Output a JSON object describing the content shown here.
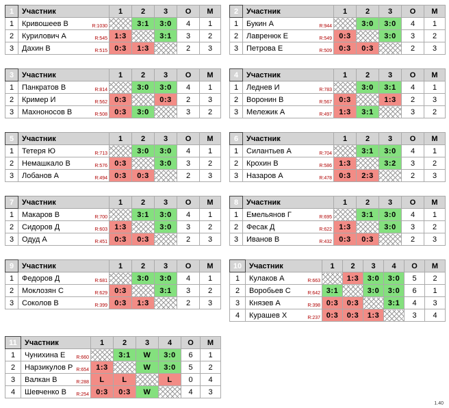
{
  "header": {
    "participant": "Участник",
    "points": "О",
    "place": "М"
  },
  "rating_prefix": "R:",
  "version": "1.40",
  "colors": {
    "win": "#84e07e",
    "loss": "#f28c86",
    "header": "#d4d4d4",
    "group_badge": "#000000"
  },
  "groups": [
    {
      "num": "1",
      "cols": [
        "1",
        "2",
        "3"
      ],
      "rows": [
        {
          "seat": "1",
          "name": "Кривошеев В",
          "rating": "1030",
          "cells": [
            {
              "t": "self",
              "v": ""
            },
            {
              "t": "win",
              "v": "3:1"
            },
            {
              "t": "win",
              "v": "3:0"
            }
          ],
          "points": "4",
          "place": "1"
        },
        {
          "seat": "2",
          "name": "Курилович А",
          "rating": "545",
          "cells": [
            {
              "t": "loss",
              "v": "1:3"
            },
            {
              "t": "self",
              "v": ""
            },
            {
              "t": "win",
              "v": "3:1"
            }
          ],
          "points": "3",
          "place": "2"
        },
        {
          "seat": "3",
          "name": "Дахин В",
          "rating": "515",
          "cells": [
            {
              "t": "loss",
              "v": "0:3"
            },
            {
              "t": "loss",
              "v": "1:3"
            },
            {
              "t": "self",
              "v": ""
            }
          ],
          "points": "2",
          "place": "3"
        }
      ]
    },
    {
      "num": "2",
      "cols": [
        "1",
        "2",
        "3"
      ],
      "rows": [
        {
          "seat": "1",
          "name": "Букин А",
          "rating": "944",
          "cells": [
            {
              "t": "self",
              "v": ""
            },
            {
              "t": "win",
              "v": "3:0"
            },
            {
              "t": "win",
              "v": "3:0"
            }
          ],
          "points": "4",
          "place": "1"
        },
        {
          "seat": "2",
          "name": "Лавренюк Е",
          "rating": "549",
          "cells": [
            {
              "t": "loss",
              "v": "0:3"
            },
            {
              "t": "self",
              "v": ""
            },
            {
              "t": "win",
              "v": "3:0"
            }
          ],
          "points": "3",
          "place": "2"
        },
        {
          "seat": "3",
          "name": "Петрова Е",
          "rating": "509",
          "cells": [
            {
              "t": "loss",
              "v": "0:3"
            },
            {
              "t": "loss",
              "v": "0:3"
            },
            {
              "t": "self",
              "v": ""
            }
          ],
          "points": "2",
          "place": "3"
        }
      ]
    },
    {
      "num": "3",
      "cols": [
        "1",
        "2",
        "3"
      ],
      "rows": [
        {
          "seat": "1",
          "name": "Панкратов В",
          "rating": "814",
          "cells": [
            {
              "t": "self",
              "v": ""
            },
            {
              "t": "win",
              "v": "3:0"
            },
            {
              "t": "win",
              "v": "3:0"
            }
          ],
          "points": "4",
          "place": "1"
        },
        {
          "seat": "2",
          "name": "Кример И",
          "rating": "562",
          "cells": [
            {
              "t": "loss",
              "v": "0:3"
            },
            {
              "t": "self",
              "v": ""
            },
            {
              "t": "loss",
              "v": "0:3"
            }
          ],
          "points": "2",
          "place": "3"
        },
        {
          "seat": "3",
          "name": "Махноносов В",
          "rating": "508",
          "cells": [
            {
              "t": "loss",
              "v": "0:3"
            },
            {
              "t": "win",
              "v": "3:0"
            },
            {
              "t": "self",
              "v": ""
            }
          ],
          "points": "3",
          "place": "2"
        }
      ]
    },
    {
      "num": "4",
      "cols": [
        "1",
        "2",
        "3"
      ],
      "rows": [
        {
          "seat": "1",
          "name": "Леднев И",
          "rating": "783",
          "cells": [
            {
              "t": "self",
              "v": ""
            },
            {
              "t": "win",
              "v": "3:0"
            },
            {
              "t": "win",
              "v": "3:1"
            }
          ],
          "points": "4",
          "place": "1"
        },
        {
          "seat": "2",
          "name": "Воронин В",
          "rating": "567",
          "cells": [
            {
              "t": "loss",
              "v": "0:3"
            },
            {
              "t": "self",
              "v": ""
            },
            {
              "t": "loss",
              "v": "1:3"
            }
          ],
          "points": "2",
          "place": "3"
        },
        {
          "seat": "3",
          "name": "Мележик А",
          "rating": "497",
          "cells": [
            {
              "t": "loss",
              "v": "1:3"
            },
            {
              "t": "win",
              "v": "3:1"
            },
            {
              "t": "self",
              "v": ""
            }
          ],
          "points": "3",
          "place": "2"
        }
      ]
    },
    {
      "num": "5",
      "cols": [
        "1",
        "2",
        "3"
      ],
      "rows": [
        {
          "seat": "1",
          "name": "Тетеря Ю",
          "rating": "713",
          "cells": [
            {
              "t": "self",
              "v": ""
            },
            {
              "t": "win",
              "v": "3:0"
            },
            {
              "t": "win",
              "v": "3:0"
            }
          ],
          "points": "4",
          "place": "1"
        },
        {
          "seat": "2",
          "name": "Немашкало В",
          "rating": "576",
          "cells": [
            {
              "t": "loss",
              "v": "0:3"
            },
            {
              "t": "self",
              "v": ""
            },
            {
              "t": "win",
              "v": "3:0"
            }
          ],
          "points": "3",
          "place": "2"
        },
        {
          "seat": "3",
          "name": "Лобанов А",
          "rating": "494",
          "cells": [
            {
              "t": "loss",
              "v": "0:3"
            },
            {
              "t": "loss",
              "v": "0:3"
            },
            {
              "t": "self",
              "v": ""
            }
          ],
          "points": "2",
          "place": "3"
        }
      ]
    },
    {
      "num": "6",
      "cols": [
        "1",
        "2",
        "3"
      ],
      "rows": [
        {
          "seat": "1",
          "name": "Силантьев А",
          "rating": "704",
          "cells": [
            {
              "t": "self",
              "v": ""
            },
            {
              "t": "win",
              "v": "3:1"
            },
            {
              "t": "win",
              "v": "3:0"
            }
          ],
          "points": "4",
          "place": "1"
        },
        {
          "seat": "2",
          "name": "Крохин В",
          "rating": "586",
          "cells": [
            {
              "t": "loss",
              "v": "1:3"
            },
            {
              "t": "self",
              "v": ""
            },
            {
              "t": "win",
              "v": "3:2"
            }
          ],
          "points": "3",
          "place": "2"
        },
        {
          "seat": "3",
          "name": "Назаров А",
          "rating": "478",
          "cells": [
            {
              "t": "loss",
              "v": "0:3"
            },
            {
              "t": "loss",
              "v": "2:3"
            },
            {
              "t": "self",
              "v": ""
            }
          ],
          "points": "2",
          "place": "3"
        }
      ]
    },
    {
      "num": "7",
      "cols": [
        "1",
        "2",
        "3"
      ],
      "rows": [
        {
          "seat": "1",
          "name": "Макаров В",
          "rating": "700",
          "cells": [
            {
              "t": "self",
              "v": ""
            },
            {
              "t": "win",
              "v": "3:1"
            },
            {
              "t": "win",
              "v": "3:0"
            }
          ],
          "points": "4",
          "place": "1"
        },
        {
          "seat": "2",
          "name": "Сидоров Д",
          "rating": "603",
          "cells": [
            {
              "t": "loss",
              "v": "1:3"
            },
            {
              "t": "self",
              "v": ""
            },
            {
              "t": "win",
              "v": "3:0"
            }
          ],
          "points": "3",
          "place": "2"
        },
        {
          "seat": "3",
          "name": "Одуд А",
          "rating": "451",
          "cells": [
            {
              "t": "loss",
              "v": "0:3"
            },
            {
              "t": "loss",
              "v": "0:3"
            },
            {
              "t": "self",
              "v": ""
            }
          ],
          "points": "2",
          "place": "3"
        }
      ]
    },
    {
      "num": "8",
      "cols": [
        "1",
        "2",
        "3"
      ],
      "rows": [
        {
          "seat": "1",
          "name": "Емельянов Г",
          "rating": "695",
          "cells": [
            {
              "t": "self",
              "v": ""
            },
            {
              "t": "win",
              "v": "3:1"
            },
            {
              "t": "win",
              "v": "3:0"
            }
          ],
          "points": "4",
          "place": "1"
        },
        {
          "seat": "2",
          "name": "Фесак Д",
          "rating": "622",
          "cells": [
            {
              "t": "loss",
              "v": "1:3"
            },
            {
              "t": "self",
              "v": ""
            },
            {
              "t": "win",
              "v": "3:0"
            }
          ],
          "points": "3",
          "place": "2"
        },
        {
          "seat": "3",
          "name": "Иванов В",
          "rating": "432",
          "cells": [
            {
              "t": "loss",
              "v": "0:3"
            },
            {
              "t": "loss",
              "v": "0:3"
            },
            {
              "t": "self",
              "v": ""
            }
          ],
          "points": "2",
          "place": "3"
        }
      ]
    },
    {
      "num": "9",
      "cols": [
        "1",
        "2",
        "3"
      ],
      "rows": [
        {
          "seat": "1",
          "name": "Федоров Д",
          "rating": "681",
          "cells": [
            {
              "t": "self",
              "v": ""
            },
            {
              "t": "win",
              "v": "3:0"
            },
            {
              "t": "win",
              "v": "3:0"
            }
          ],
          "points": "4",
          "place": "1"
        },
        {
          "seat": "2",
          "name": "Моклозян С",
          "rating": "629",
          "cells": [
            {
              "t": "loss",
              "v": "0:3"
            },
            {
              "t": "self",
              "v": ""
            },
            {
              "t": "win",
              "v": "3:1"
            }
          ],
          "points": "3",
          "place": "2"
        },
        {
          "seat": "3",
          "name": "Соколов В",
          "rating": "399",
          "cells": [
            {
              "t": "loss",
              "v": "0:3"
            },
            {
              "t": "loss",
              "v": "1:3"
            },
            {
              "t": "self",
              "v": ""
            }
          ],
          "points": "2",
          "place": "3"
        }
      ]
    },
    {
      "num": "10",
      "cols": [
        "1",
        "2",
        "3",
        "4"
      ],
      "rows": [
        {
          "seat": "1",
          "name": "Кулаков А",
          "rating": "663",
          "cells": [
            {
              "t": "self",
              "v": ""
            },
            {
              "t": "loss",
              "v": "1:3"
            },
            {
              "t": "win",
              "v": "3:0"
            },
            {
              "t": "win",
              "v": "3:0"
            }
          ],
          "points": "5",
          "place": "2"
        },
        {
          "seat": "2",
          "name": "Воробьев С",
          "rating": "642",
          "cells": [
            {
              "t": "win",
              "v": "3:1"
            },
            {
              "t": "self",
              "v": ""
            },
            {
              "t": "win",
              "v": "3:0"
            },
            {
              "t": "win",
              "v": "3:0"
            }
          ],
          "points": "6",
          "place": "1"
        },
        {
          "seat": "3",
          "name": "Князев А",
          "rating": "398",
          "cells": [
            {
              "t": "loss",
              "v": "0:3"
            },
            {
              "t": "loss",
              "v": "0:3"
            },
            {
              "t": "self",
              "v": ""
            },
            {
              "t": "win",
              "v": "3:1"
            }
          ],
          "points": "4",
          "place": "3"
        },
        {
          "seat": "4",
          "name": "Курашев Х",
          "rating": "237",
          "cells": [
            {
              "t": "loss",
              "v": "0:3"
            },
            {
              "t": "loss",
              "v": "0:3"
            },
            {
              "t": "loss",
              "v": "1:3"
            },
            {
              "t": "self",
              "v": ""
            }
          ],
          "points": "3",
          "place": "4"
        }
      ]
    },
    {
      "num": "11",
      "cols": [
        "1",
        "2",
        "3",
        "4"
      ],
      "rows": [
        {
          "seat": "1",
          "name": "Чунихина Е",
          "rating": "660",
          "cells": [
            {
              "t": "self",
              "v": ""
            },
            {
              "t": "win",
              "v": "3:1"
            },
            {
              "t": "win",
              "v": "W"
            },
            {
              "t": "win",
              "v": "3:0"
            }
          ],
          "points": "6",
          "place": "1"
        },
        {
          "seat": "2",
          "name": "Нарзикулов Р",
          "rating": "654",
          "cells": [
            {
              "t": "loss",
              "v": "1:3"
            },
            {
              "t": "self",
              "v": ""
            },
            {
              "t": "win",
              "v": "W"
            },
            {
              "t": "win",
              "v": "3:0"
            }
          ],
          "points": "5",
          "place": "2"
        },
        {
          "seat": "3",
          "name": "Валкан В",
          "rating": "288",
          "cells": [
            {
              "t": "loss",
              "v": "L"
            },
            {
              "t": "loss",
              "v": "L"
            },
            {
              "t": "self",
              "v": ""
            },
            {
              "t": "loss",
              "v": "L"
            }
          ],
          "points": "0",
          "place": "4"
        },
        {
          "seat": "4",
          "name": "Шевченко В",
          "rating": "254",
          "cells": [
            {
              "t": "loss",
              "v": "0:3"
            },
            {
              "t": "loss",
              "v": "0:3"
            },
            {
              "t": "win",
              "v": "W"
            },
            {
              "t": "self",
              "v": ""
            }
          ],
          "points": "4",
          "place": "3"
        }
      ]
    }
  ]
}
